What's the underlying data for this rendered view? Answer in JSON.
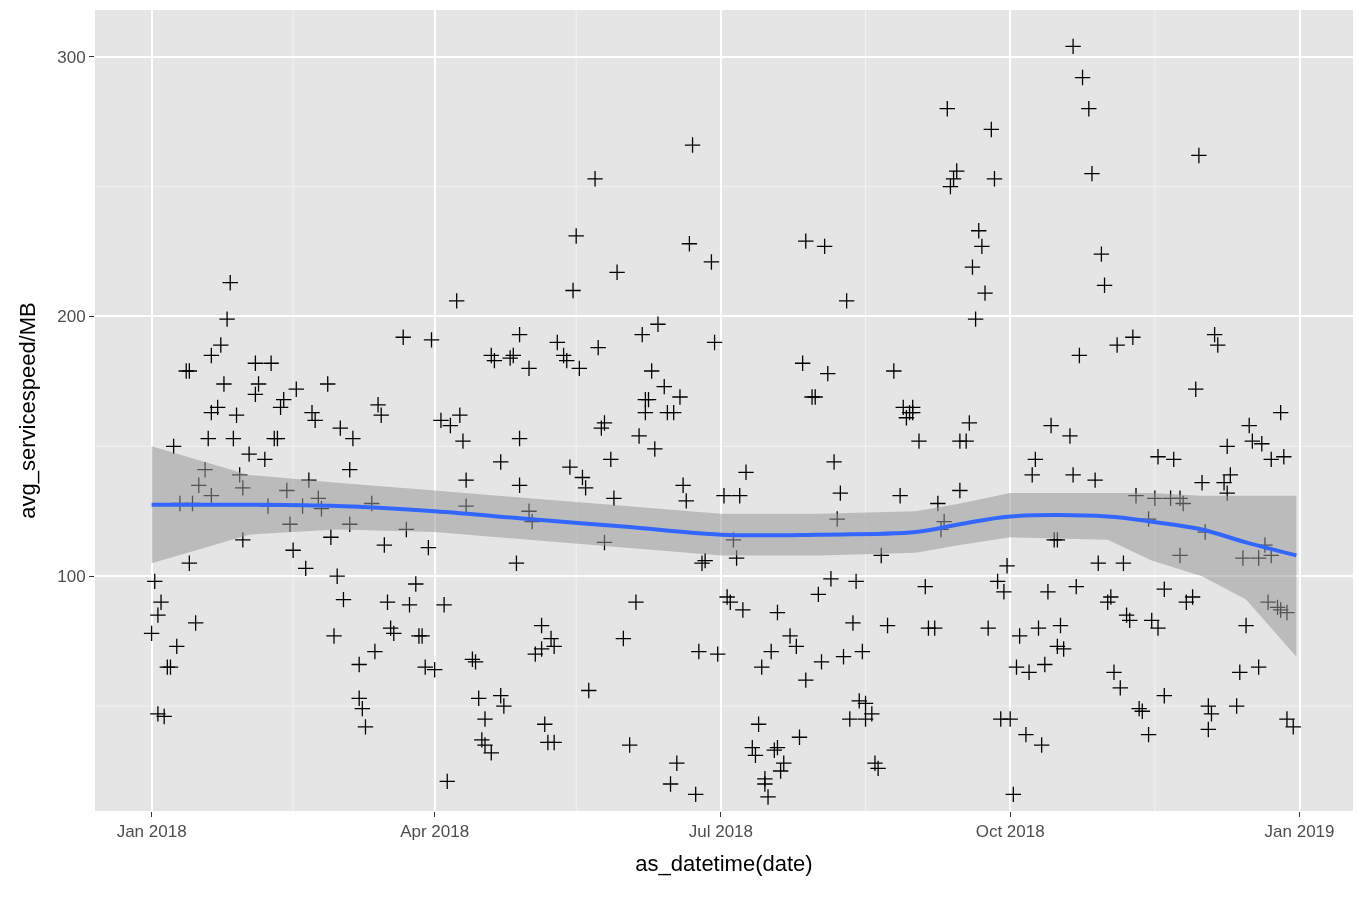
{
  "chart_data": {
    "type": "scatter",
    "xlabel": "as_datetime(date)",
    "ylabel": "avg_servicespeed/MB",
    "xlim": [
      "2017-12-14",
      "2019-01-18"
    ],
    "ylim": [
      9.6,
      318
    ],
    "xticks": [
      {
        "value": "2018-01-01",
        "label": "Jan 2018"
      },
      {
        "value": "2018-04-01",
        "label": "Apr 2018"
      },
      {
        "value": "2018-07-01",
        "label": "Jul 2018"
      },
      {
        "value": "2018-10-01",
        "label": "Oct 2018"
      },
      {
        "value": "2019-01-01",
        "label": "Jan 2019"
      }
    ],
    "yticks": [
      100,
      200,
      300
    ],
    "grid": true,
    "marker": "cross",
    "series": [
      {
        "color": "#000000",
        "x": [
          "2018-01-01",
          "2018-01-02",
          "2018-01-03",
          "2018-01-04",
          "2018-01-03",
          "2018-01-05",
          "2018-01-06",
          "2018-01-07",
          "2018-01-08",
          "2018-01-09",
          "2018-01-10",
          "2018-01-12",
          "2018-01-13",
          "2018-01-13",
          "2018-01-14",
          "2018-01-15",
          "2018-01-16",
          "2018-01-18",
          "2018-01-19",
          "2018-01-20",
          "2018-01-20",
          "2018-01-20",
          "2018-01-22",
          "2018-01-23",
          "2018-01-24",
          "2018-01-25",
          "2018-01-26",
          "2018-01-27",
          "2018-01-28",
          "2018-01-29",
          "2018-01-30",
          "2018-01-30",
          "2018-02-01",
          "2018-02-03",
          "2018-02-03",
          "2018-02-04",
          "2018-02-06",
          "2018-02-07",
          "2018-02-08",
          "2018-02-09",
          "2018-02-10",
          "2018-02-11",
          "2018-02-12",
          "2018-02-13",
          "2018-02-14",
          "2018-02-15",
          "2018-02-16",
          "2018-02-18",
          "2018-02-19",
          "2018-02-20",
          "2018-02-21",
          "2018-02-22",
          "2018-02-23",
          "2018-02-24",
          "2018-02-26",
          "2018-02-27",
          "2018-02-28",
          "2018-03-01",
          "2018-03-02",
          "2018-03-03",
          "2018-03-05",
          "2018-03-05",
          "2018-03-06",
          "2018-03-08",
          "2018-03-08",
          "2018-03-09",
          "2018-03-10",
          "2018-03-12",
          "2018-03-13",
          "2018-03-14",
          "2018-03-15",
          "2018-03-16",
          "2018-03-17",
          "2018-03-18",
          "2018-03-19",
          "2018-03-22",
          "2018-03-23",
          "2018-03-24",
          "2018-03-26",
          "2018-03-27",
          "2018-03-28",
          "2018-03-30",
          "2018-03-29",
          "2018-03-31",
          "2018-04-01",
          "2018-04-03",
          "2018-04-04",
          "2018-04-05",
          "2018-04-06",
          "2018-04-08",
          "2018-04-09",
          "2018-04-10",
          "2018-04-11",
          "2018-04-11",
          "2018-04-13",
          "2018-04-14",
          "2018-04-15",
          "2018-04-16",
          "2018-04-17",
          "2018-04-19",
          "2018-04-17",
          "2018-04-19",
          "2018-04-20",
          "2018-04-22",
          "2018-04-22",
          "2018-04-23",
          "2018-04-25",
          "2018-04-26",
          "2018-04-27",
          "2018-04-28",
          "2018-04-28",
          "2018-04-28",
          "2018-05-01",
          "2018-05-01",
          "2018-05-02",
          "2018-05-03",
          "2018-05-05",
          "2018-05-05",
          "2018-05-06",
          "2018-05-07",
          "2018-05-09",
          "2018-05-08",
          "2018-05-09",
          "2018-05-10",
          "2018-05-12",
          "2018-05-13",
          "2018-05-14",
          "2018-05-15",
          "2018-05-16",
          "2018-05-17",
          "2018-05-18",
          "2018-05-19",
          "2018-05-20",
          "2018-05-22",
          "2018-05-23",
          "2018-05-24",
          "2018-05-25",
          "2018-05-25",
          "2018-05-27",
          "2018-05-28",
          "2018-05-29",
          "2018-05-31",
          "2018-06-02",
          "2018-06-04",
          "2018-06-05",
          "2018-06-06",
          "2018-06-07",
          "2018-06-07",
          "2018-06-08",
          "2018-06-09",
          "2018-06-10",
          "2018-06-11",
          "2018-06-13",
          "2018-06-14",
          "2018-06-16",
          "2018-06-15",
          "2018-06-17",
          "2018-06-18",
          "2018-06-19",
          "2018-06-20",
          "2018-06-21",
          "2018-06-22",
          "2018-06-23",
          "2018-06-24",
          "2018-06-25",
          "2018-06-26",
          "2018-06-28",
          "2018-06-29",
          "2018-06-30",
          "2018-07-02",
          "2018-07-03",
          "2018-07-04",
          "2018-07-05",
          "2018-07-06",
          "2018-07-07",
          "2018-07-09",
          "2018-07-08",
          "2018-07-13",
          "2018-07-11",
          "2018-07-12",
          "2018-07-15",
          "2018-07-16",
          "2018-07-15",
          "2018-07-14",
          "2018-07-17",
          "2018-07-19",
          "2018-07-18",
          "2018-07-19",
          "2018-07-20",
          "2018-07-21",
          "2018-07-23",
          "2018-07-25",
          "2018-07-26",
          "2018-07-28",
          "2018-07-27",
          "2018-07-28",
          "2018-07-30",
          "2018-07-31",
          "2018-08-01",
          "2018-08-02",
          "2018-08-03",
          "2018-08-04",
          "2018-08-05",
          "2018-08-06",
          "2018-08-07",
          "2018-08-08",
          "2018-08-09",
          "2018-08-10",
          "2018-08-11",
          "2018-08-12",
          "2018-08-13",
          "2018-08-14",
          "2018-08-15",
          "2018-08-16",
          "2018-08-16",
          "2018-08-18",
          "2018-08-19",
          "2018-08-20",
          "2018-08-21",
          "2018-08-23",
          "2018-08-25",
          "2018-08-27",
          "2018-08-28",
          "2018-08-29",
          "2018-08-30",
          "2018-08-31",
          "2018-08-31",
          "2018-09-02",
          "2018-09-04",
          "2018-09-05",
          "2018-09-07",
          "2018-09-08",
          "2018-09-09",
          "2018-09-10",
          "2018-09-11",
          "2018-09-12",
          "2018-09-13",
          "2018-09-14",
          "2018-09-15",
          "2018-09-17",
          "2018-09-15",
          "2018-09-18",
          "2018-09-19",
          "2018-09-20",
          "2018-09-21",
          "2018-09-22",
          "2018-09-23",
          "2018-09-24",
          "2018-09-25",
          "2018-09-26",
          "2018-09-27",
          "2018-09-28",
          "2018-09-29",
          "2018-09-30",
          "2018-10-01",
          "2018-10-02",
          "2018-10-03",
          "2018-10-04",
          "2018-10-06",
          "2018-10-07",
          "2018-10-08",
          "2018-10-09",
          "2018-10-10",
          "2018-10-11",
          "2018-10-12",
          "2018-10-13",
          "2018-10-14",
          "2018-10-15",
          "2018-10-16",
          "2018-10-16",
          "2018-10-17",
          "2018-10-18",
          "2018-10-20",
          "2018-10-21",
          "2018-10-21",
          "2018-10-22",
          "2018-10-23",
          "2018-10-24",
          "2018-10-26",
          "2018-10-27",
          "2018-10-28",
          "2018-10-29",
          "2018-10-30",
          "2018-10-31",
          "2018-11-01",
          "2018-11-02",
          "2018-11-03",
          "2018-11-04",
          "2018-11-05",
          "2018-11-06",
          "2018-11-07",
          "2018-11-08",
          "2018-11-09",
          "2018-11-10",
          "2018-11-11",
          "2018-11-12",
          "2018-11-14",
          "2018-11-14",
          "2018-11-15",
          "2018-11-16",
          "2018-11-17",
          "2018-11-17",
          "2018-11-19",
          "2018-11-19",
          "2018-11-21",
          "2018-11-22",
          "2018-11-24",
          "2018-11-24",
          "2018-11-25",
          "2018-11-26",
          "2018-11-28",
          "2018-11-29",
          "2018-11-30",
          "2018-12-01",
          "2018-12-02",
          "2018-12-03",
          "2018-12-03",
          "2018-12-04",
          "2018-12-05",
          "2018-12-06",
          "2018-12-09",
          "2018-12-08",
          "2018-12-09",
          "2018-12-10",
          "2018-12-12",
          "2018-12-13",
          "2018-12-14",
          "2018-12-15",
          "2018-12-16",
          "2018-12-17",
          "2018-12-19",
          "2018-12-19",
          "2018-12-20",
          "2018-12-21",
          "2018-12-22",
          "2018-12-23",
          "2018-12-23",
          "2018-12-25",
          "2018-12-26",
          "2018-12-26",
          "2018-12-27",
          "2018-12-28",
          "2018-12-28",
          "2018-12-30"
        ],
        "values": [
          78,
          98,
          85,
          90,
          47,
          46,
          65,
          65,
          150,
          73,
          128,
          179,
          179,
          105,
          128,
          82,
          135,
          141,
          153,
          131,
          163,
          185,
          165,
          189,
          174,
          199,
          213,
          153,
          162,
          139,
          114,
          134,
          147,
          170,
          182,
          174,
          145,
          127,
          182,
          153,
          153,
          165,
          168,
          133,
          120,
          110,
          172,
          127,
          103,
          137,
          163,
          160,
          130,
          126,
          174,
          115,
          77,
          100,
          157,
          91,
          120,
          141,
          153,
          66,
          53,
          49,
          42,
          128,
          71,
          166,
          162,
          112,
          90,
          80,
          78,
          192,
          118,
          89,
          97,
          77,
          77,
          111,
          65,
          191,
          64,
          160,
          89,
          21,
          158,
          206,
          162,
          152,
          137,
          127,
          68,
          67,
          53,
          37,
          35,
          32,
          45,
          185,
          183,
          144,
          54,
          50,
          184,
          185,
          105,
          193,
          153,
          135,
          125,
          180,
          121,
          70,
          72,
          81,
          43,
          36,
          36,
          76,
          73,
          190,
          185,
          183,
          142,
          210,
          231,
          180,
          138,
          134,
          56,
          253,
          188,
          157,
          159,
          113,
          145,
          130,
          217,
          76,
          35,
          90,
          154,
          193,
          168,
          163,
          168,
          179,
          149,
          197,
          173,
          163,
          163,
          20,
          28,
          169,
          135,
          129,
          228,
          266,
          16,
          71,
          105,
          106,
          221,
          190,
          70,
          131,
          92,
          90,
          114,
          107,
          131,
          140,
          87,
          43,
          34,
          31,
          20,
          15,
          22,
          65,
          71,
          86,
          33,
          34,
          25,
          28,
          77,
          73,
          38,
          60,
          182,
          229,
          169,
          169,
          93,
          67,
          227,
          178,
          99,
          144,
          122,
          132,
          69,
          206,
          45,
          82,
          98,
          52,
          71,
          45,
          51,
          47,
          28,
          26,
          108,
          81,
          179,
          131,
          165,
          161,
          163,
          165,
          163,
          152,
          96,
          80,
          80,
          128,
          118,
          121,
          280,
          250,
          253,
          256,
          152,
          152,
          133,
          159,
          219,
          199,
          233,
          227,
          209,
          80,
          272,
          253,
          98,
          45,
          94,
          104,
          45,
          16,
          65,
          77,
          39,
          63,
          139,
          145,
          80,
          35,
          66,
          94,
          158,
          114,
          114,
          73,
          81,
          72,
          154,
          139,
          304,
          96,
          185,
          292,
          280,
          255,
          137,
          105,
          224,
          212,
          90,
          92,
          63,
          189,
          57,
          105,
          85,
          83,
          192,
          131,
          49,
          48,
          122,
          39,
          83,
          130,
          146,
          80,
          95,
          54,
          130,
          145,
          130,
          108,
          128,
          90,
          92,
          172,
          262,
          136,
          117,
          41,
          50,
          47,
          193,
          189,
          150,
          136,
          132,
          139,
          50,
          63,
          107,
          81,
          158,
          152,
          107,
          65,
          151,
          112,
          90,
          108,
          145,
          88,
          87,
          163,
          146,
          86,
          45,
          42
        ]
      },
      {
        "type": "line",
        "color": "#3366ff",
        "marker": "none",
        "x": [
          "2018-01-01",
          "2018-02-01",
          "2018-03-01",
          "2018-04-01",
          "2018-05-01",
          "2018-06-01",
          "2018-07-01",
          "2018-08-01",
          "2018-09-01",
          "2018-09-15",
          "2018-10-01",
          "2018-11-01",
          "2018-11-15",
          "2018-12-01",
          "2018-12-15",
          "2018-12-31"
        ],
        "values": [
          127.5,
          127.5,
          127,
          125,
          122,
          119,
          116,
          116,
          117,
          120,
          123,
          123,
          121,
          118,
          113,
          108
        ],
        "lower": [
          105,
          116,
          118,
          117,
          114,
          111,
          108,
          108,
          109,
          112,
          115,
          114,
          106,
          100,
          91,
          69
        ],
        "upper": [
          150,
          139,
          136,
          133,
          130,
          127,
          124,
          124,
          125,
          128,
          132,
          132,
          132,
          131,
          131,
          131
        ]
      }
    ]
  }
}
